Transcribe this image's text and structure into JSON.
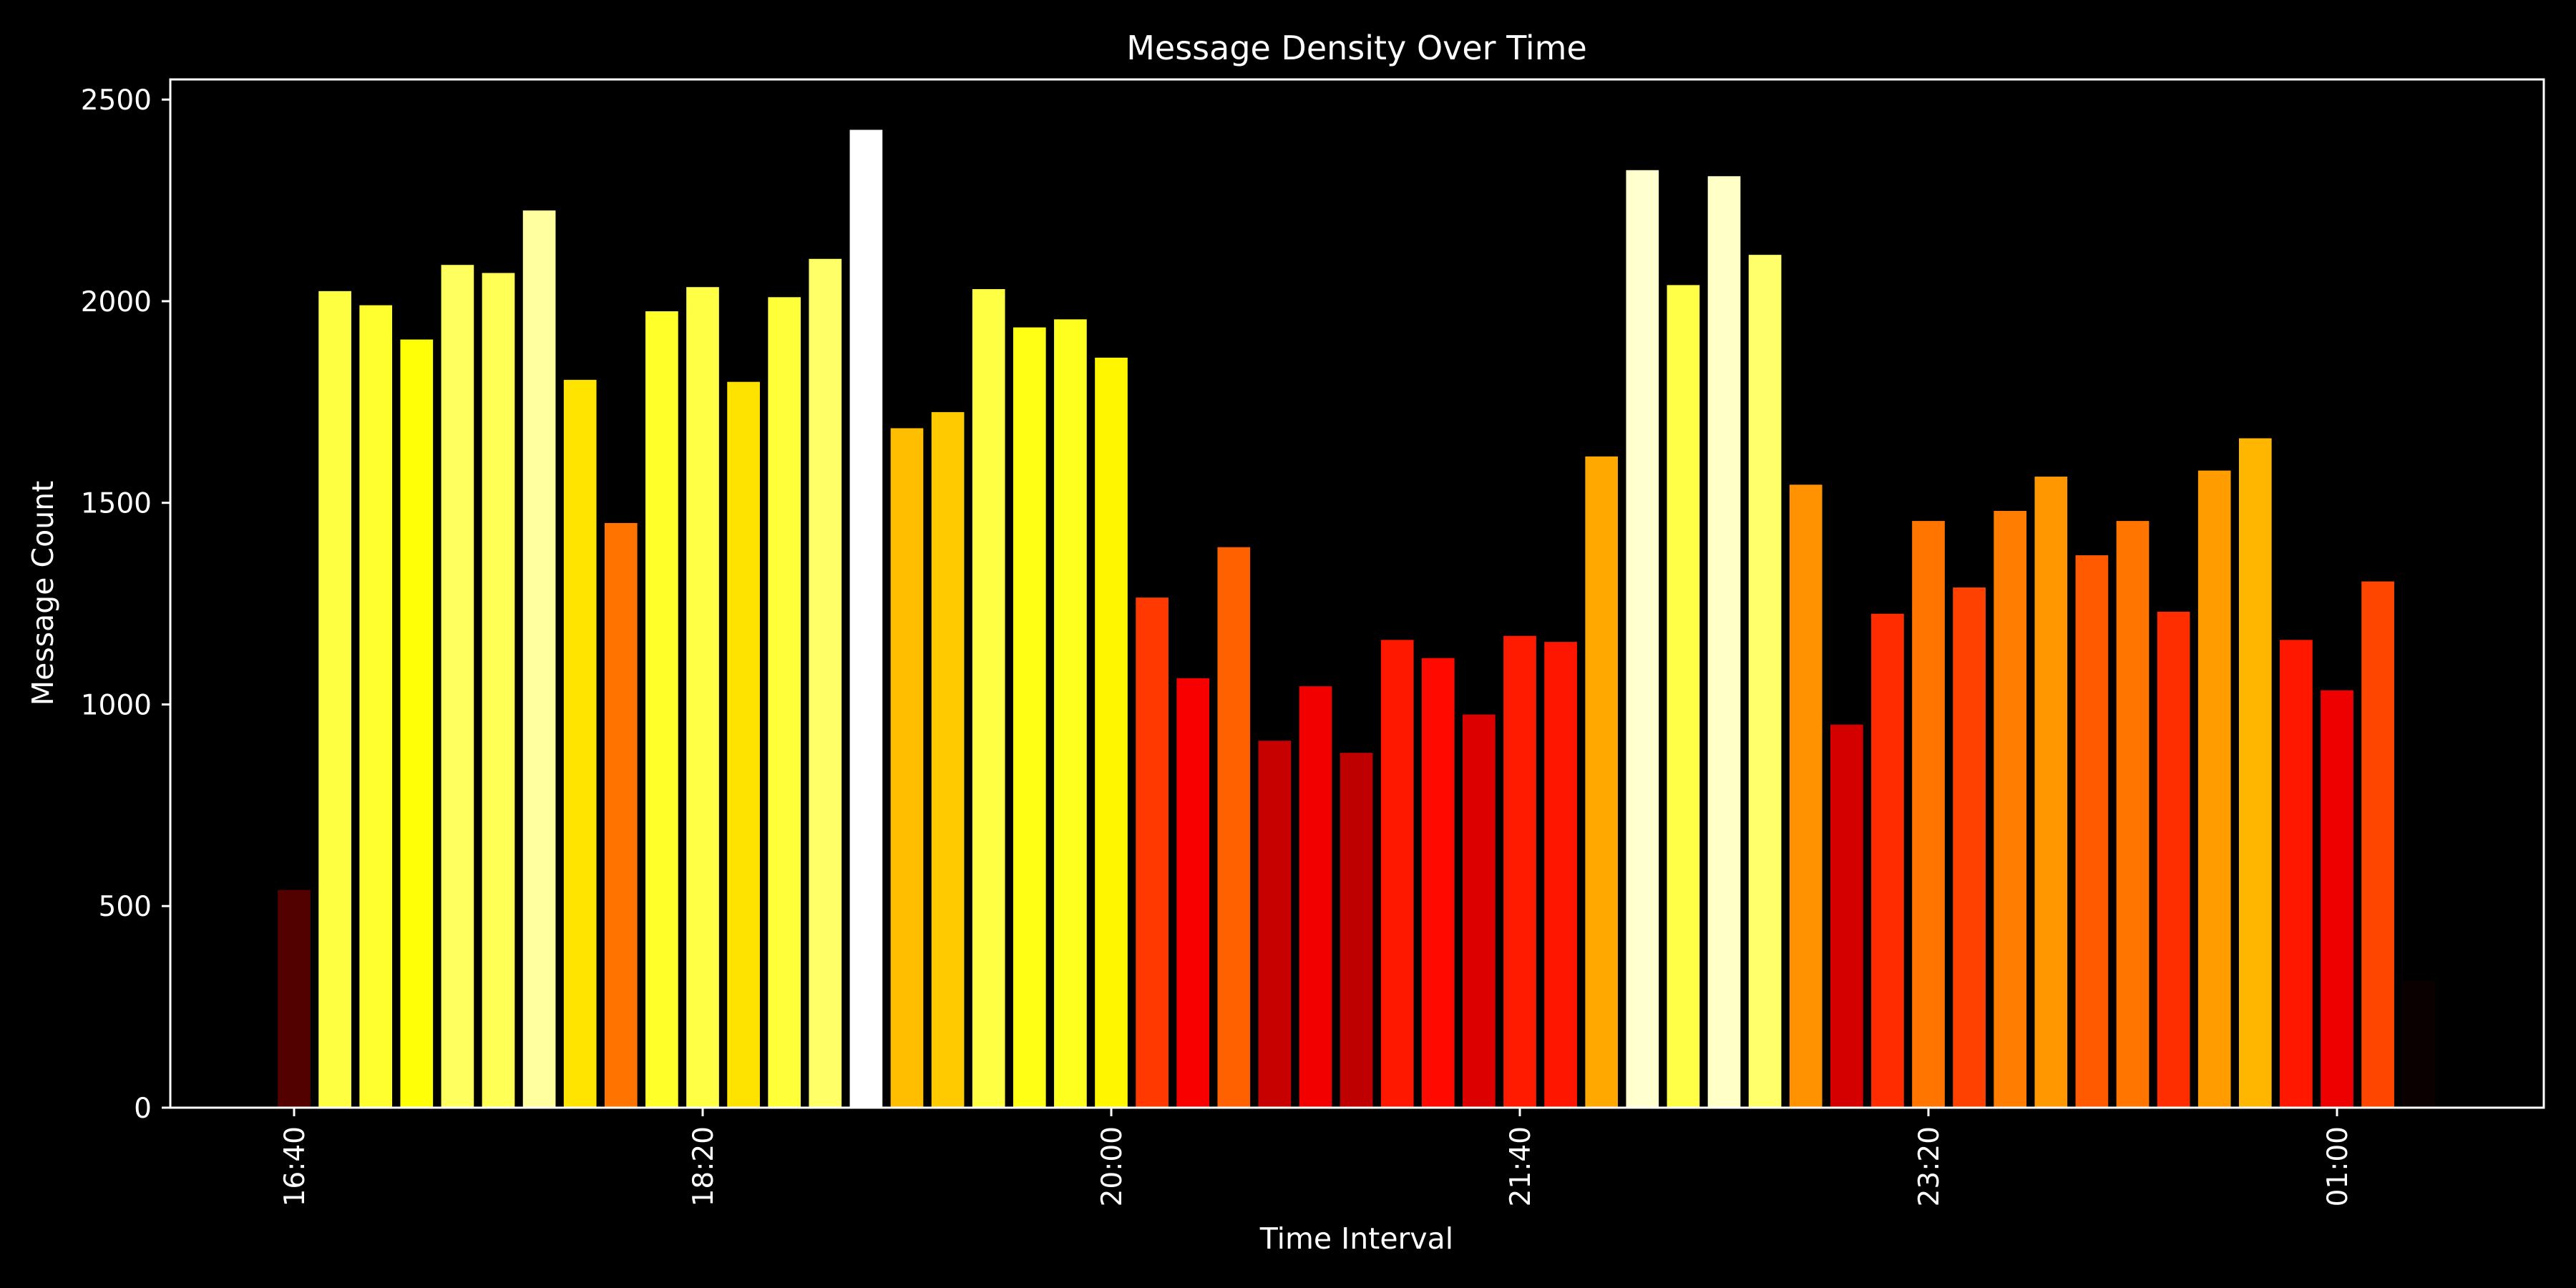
{
  "chart_data": {
    "type": "bar",
    "title": "Message Density Over Time",
    "xlabel": "Time Interval",
    "ylabel": "Message Count",
    "ylim": [
      0,
      2550
    ],
    "yticks": [
      0,
      500,
      1000,
      1500,
      2000,
      2500
    ],
    "xtick_labels": [
      "16:40",
      "18:20",
      "20:00",
      "21:40",
      "23:20",
      "01:00"
    ],
    "xtick_positions": [
      0,
      10,
      20,
      30,
      40,
      50
    ],
    "grid": false,
    "legend": "none",
    "background_color": "#000000",
    "foreground_color": "#ffffff",
    "colormap": "hot",
    "values": [
      540,
      2025,
      1990,
      1905,
      2090,
      2070,
      2225,
      1805,
      1450,
      1975,
      2035,
      1800,
      2010,
      2105,
      2425,
      1685,
      1725,
      2030,
      1935,
      1955,
      1860,
      1265,
      1065,
      1390,
      910,
      1045,
      880,
      1160,
      1115,
      975,
      1170,
      1155,
      1615,
      2325,
      2040,
      2310,
      2115,
      1545,
      950,
      1225,
      1455,
      1290,
      1480,
      1565,
      1370,
      1455,
      1230,
      1580,
      1660,
      1160,
      1035,
      1305,
      315
    ]
  }
}
